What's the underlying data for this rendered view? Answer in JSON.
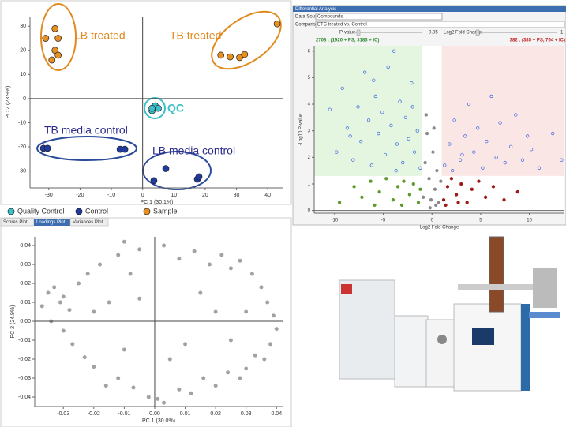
{
  "chart_data": [
    {
      "type": "scatter",
      "xlabel": "PC 1 (30.1%)",
      "ylabel": "PC 2 (23.9%)",
      "xlim": [
        -36,
        45
      ],
      "ylim": [
        -37,
        34
      ],
      "xticks": [
        -30,
        -20,
        -10,
        0,
        10,
        20,
        30,
        40
      ],
      "yticks": [
        -30,
        -20,
        -10,
        0,
        10,
        20,
        30
      ],
      "annotations": [
        "LB treated",
        "TB treated",
        "QC",
        "TB media control",
        "LB media control"
      ],
      "series": [
        {
          "name": "Quality Control",
          "color": "#3cc0c8",
          "x": [
            3,
            4,
            5,
            3
          ],
          "values": [
            -5,
            -3,
            -4,
            -4
          ]
        },
        {
          "name": "Control",
          "color": "#1f3c9a",
          "x": [
            -31.7,
            -30.4,
            -7.2,
            -5.7,
            3.6,
            7.4,
            17.5,
            18
          ],
          "values": [
            -20.6,
            -20.6,
            -21,
            -21,
            -34,
            -29,
            -33.4,
            -32.4
          ]
        },
        {
          "name": "Sample",
          "color": "#e8901e",
          "x": [
            -31,
            -28,
            -27,
            -28,
            -27,
            -29,
            43,
            25,
            28,
            31,
            32.6
          ],
          "values": [
            25,
            29,
            25,
            20,
            18,
            16,
            31,
            18,
            17.3,
            17,
            18.3
          ]
        }
      ]
    },
    {
      "type": "scatter",
      "window_title": "Differential Analysis",
      "data_source_label": "Data Source:",
      "data_source": "Compounds",
      "comparison_label": "Comparison:",
      "comparison": "ETC treated vs. Control",
      "p_value_label": "P-value",
      "p_value": 0.05,
      "fold_change_label": "Log2 Fold Change",
      "fold_change": 1,
      "down_summary": "2708 : (1920 + PS, 3183 + IC)",
      "up_summary": "382 : (385 + PS, 764 + IC)",
      "xlabel": "Log2 Fold Change",
      "ylabel": "-Log10 P-value",
      "xlim": [
        -12.1,
        13.6
      ],
      "ylim": [
        -0.1,
        6.2
      ],
      "xticks": [
        -10,
        -5,
        0,
        5,
        10
      ],
      "yticks": [
        0,
        1,
        2,
        3,
        4,
        5,
        6
      ],
      "series": [
        {
          "color": "#3a66e0",
          "x": [
            -10.5,
            -9.8,
            -9.2,
            -8.7,
            -8.1,
            -7.6,
            -7.3,
            -6.9,
            -6.5,
            -6.2,
            -5.8,
            -5.5,
            -5.1,
            -4.8,
            -4.5,
            -4.2,
            -3.9,
            -3.6,
            -3.3,
            -3.0,
            -2.7,
            -2.4,
            -2.1,
            -1.8,
            -1.5,
            -1.2,
            -6.0,
            -8.4,
            -3.7,
            -2.0
          ],
          "values": [
            3.8,
            2.2,
            4.6,
            3.1,
            1.9,
            3.9,
            2.6,
            5.2,
            3.4,
            1.7,
            4.3,
            2.9,
            3.7,
            2.1,
            5.4,
            3.2,
            6.0,
            2.5,
            4.1,
            1.8,
            3.5,
            2.7,
            4.8,
            2.2,
            3.0,
            1.6,
            4.9,
            2.8,
            1.5,
            3.9
          ]
        },
        {
          "color": "#3a66e0",
          "x": [
            1.3,
            1.8,
            2.3,
            2.9,
            3.4,
            3.8,
            4.3,
            4.7,
            5.2,
            5.6,
            6.1,
            6.6,
            7.0,
            7.5,
            8.1,
            8.6,
            9.3,
            10.2,
            11.0,
            12.4,
            13.3,
            3.1,
            2.1,
            9.8
          ],
          "values": [
            1.7,
            2.5,
            3.4,
            1.9,
            2.8,
            4.0,
            2.2,
            3.1,
            1.6,
            2.6,
            4.3,
            2.0,
            3.3,
            1.8,
            2.4,
            3.6,
            1.9,
            2.3,
            1.6,
            2.9,
            1.9,
            2.1,
            1.5,
            2.8
          ]
        },
        {
          "color": "#5c9a2a",
          "x": [
            -9.5,
            -8,
            -7.2,
            -6.3,
            -5.4,
            -4.7,
            -4.0,
            -3.5,
            -2.9,
            -2.3,
            -1.9,
            -1.4,
            -1.2,
            -5.9,
            -3.1
          ],
          "values": [
            0.3,
            0.9,
            0.5,
            1.1,
            0.7,
            1.2,
            0.4,
            0.9,
            1.1,
            0.6,
            1.0,
            0.3,
            0.8,
            0.2,
            0.2
          ]
        },
        {
          "color": "#a01818",
          "x": [
            1.2,
            1.6,
            2.0,
            2.5,
            3.0,
            3.6,
            4.1,
            4.8,
            5.5,
            6.3,
            7.4,
            8.8,
            1.4,
            2.7
          ],
          "values": [
            0.4,
            0.9,
            1.2,
            0.6,
            1.0,
            0.3,
            0.8,
            1.1,
            0.5,
            0.9,
            0.4,
            0.7,
            0.2,
            0.3
          ]
        },
        {
          "color": "#8a8a8a",
          "x": [
            -0.9,
            -0.7,
            -0.5,
            -0.3,
            -0.1,
            0.1,
            0.3,
            0.5,
            0.7,
            0.9,
            -0.6,
            0.2,
            -0.2,
            0.4
          ],
          "values": [
            0.5,
            1.8,
            2.9,
            1.2,
            0.4,
            2.2,
            0.8,
            1.5,
            0.3,
            1.1,
            3.6,
            3.1,
            0.1,
            0.2
          ]
        }
      ]
    },
    {
      "type": "scatter",
      "tabs": [
        "Scores Plot",
        "Loadings Plot",
        "Variances Plot"
      ],
      "xlabel": "PC 1 (30.0%)",
      "ylabel": "PC 2 (24.9%)",
      "xlim": [
        -0.0394,
        0.042
      ],
      "ylim": [
        -0.045,
        0.0446
      ],
      "xticks": [
        -0.03,
        -0.02,
        -0.01,
        {
          "value": 0,
          "label": "0.00"
        },
        0.01,
        0.02,
        0.03,
        0.04
      ],
      "yticks": [
        0.04,
        0.03,
        0.02,
        0.01,
        {
          "value": 0,
          "label": "0.00"
        },
        -0.01,
        -0.02,
        -0.03,
        -0.04
      ],
      "series": [
        {
          "color": "#555555",
          "x": [
            -0.035,
            -0.033,
            -0.031,
            -0.03,
            -0.028,
            -0.025,
            -0.022,
            -0.018,
            -0.012,
            -0.01,
            -0.005,
            0.003,
            0.008,
            0.013,
            0.018,
            0.022,
            0.025,
            0.028,
            0.032,
            0.035,
            0.037,
            0.039,
            0.04,
            0.038,
            0.036,
            0.033,
            0.03,
            0.028,
            0.024,
            0.02,
            0.016,
            0.012,
            0.008,
            0.003,
            0.001,
            -0.002,
            -0.007,
            -0.012,
            -0.016,
            -0.02,
            -0.023,
            -0.027,
            -0.03,
            -0.034,
            -0.037,
            -0.015,
            -0.005,
            0.01,
            0.02,
            -0.01,
            0.015,
            -0.02,
            0.005,
            0.025,
            -0.008,
            0.03
          ],
          "values": [
            0.015,
            0.018,
            0.01,
            0.013,
            0.006,
            0.02,
            0.025,
            0.03,
            0.035,
            0.042,
            0.038,
            0.04,
            0.033,
            0.037,
            0.03,
            0.035,
            0.028,
            0.032,
            0.025,
            0.018,
            0.01,
            0.003,
            -0.004,
            -0.012,
            -0.02,
            -0.018,
            -0.025,
            -0.03,
            -0.027,
            -0.034,
            -0.03,
            -0.038,
            -0.036,
            -0.043,
            -0.041,
            -0.04,
            -0.035,
            -0.03,
            -0.034,
            -0.024,
            -0.019,
            -0.012,
            -0.005,
            0.0,
            0.008,
            0.01,
            0.012,
            -0.012,
            0.005,
            -0.015,
            0.015,
            0.005,
            -0.02,
            -0.01,
            0.025,
            0.005
          ]
        }
      ]
    }
  ]
}
